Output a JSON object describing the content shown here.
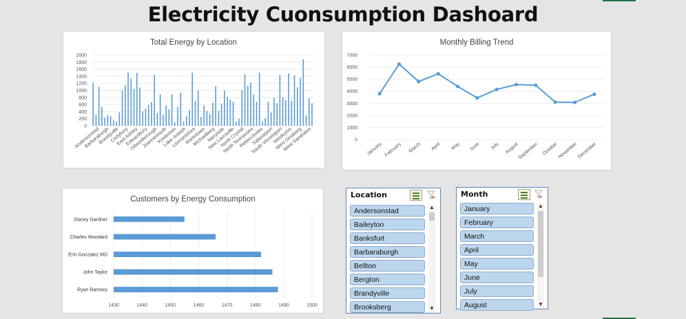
{
  "page": {
    "title": "Electricity Cuonsumption Dashoard"
  },
  "chart_data": [
    {
      "type": "bar",
      "title": "Total Energy by Location",
      "ylim": [
        0,
        2000
      ],
      "yticks": [
        0,
        200,
        400,
        600,
        800,
        1000,
        1200,
        1400,
        1600,
        1800,
        2000
      ],
      "tick_labels": [
        "Andersonstad",
        "Barbaraburgh",
        "Brandyville",
        "Codybury",
        "East Ashley",
        "Edwardbury",
        "Gibsonborough",
        "Joannemouth",
        "Kristinown",
        "Lake Joseph",
        "Leonardshire",
        "Martintown",
        "Michaelberg",
        "Nanyside",
        "New Lauraville",
        "North Crystal",
        "North Teresaview",
        "Rebeccaview",
        "Salazarport",
        "South Vincentport",
        "Wesleyton",
        "West Ginaberg",
        "West Sandraton"
      ],
      "values": [
        1220,
        310,
        1100,
        540,
        230,
        300,
        270,
        160,
        120,
        380,
        1000,
        1150,
        1500,
        1340,
        1040,
        1500,
        1080,
        410,
        490,
        590,
        670,
        1440,
        360,
        890,
        320,
        570,
        470,
        890,
        100,
        540,
        940,
        120,
        270,
        440,
        1500,
        700,
        1000,
        250,
        570,
        420,
        330,
        650,
        1120,
        430,
        630,
        1000,
        820,
        750,
        680,
        120,
        200,
        1010,
        1460,
        1130,
        1220,
        880,
        680,
        1500,
        130,
        220,
        680,
        380,
        790,
        640,
        1440,
        810,
        730,
        1480,
        710,
        1420,
        1090,
        1360,
        1880,
        300,
        780,
        640
      ]
    },
    {
      "type": "line",
      "title": "Monthly Billing Trend",
      "ylim": [
        0,
        7000
      ],
      "yticks": [
        0,
        1000,
        2000,
        3000,
        4000,
        5000,
        6000,
        7000
      ],
      "categories": [
        "January",
        "February",
        "March",
        "April",
        "May",
        "June",
        "July",
        "August",
        "September",
        "October",
        "November",
        "December"
      ],
      "values": [
        3800,
        6250,
        4800,
        5450,
        4400,
        3450,
        4150,
        4550,
        4500,
        3100,
        3080,
        3750
      ]
    },
    {
      "type": "bar",
      "orientation": "horizontal",
      "title": "Customers by Energy Consumption",
      "xlim": [
        1430,
        1500
      ],
      "xticks": [
        1430,
        1440,
        1450,
        1460,
        1470,
        1480,
        1490,
        1500
      ],
      "categories": [
        "Stacey Gardner",
        "Charles Woodard",
        "Erin Gonzalez MD",
        "John Taylor",
        "Ryan Ramsey"
      ],
      "values": [
        1455,
        1466,
        1482,
        1486,
        1488
      ]
    }
  ],
  "slicers": {
    "location": {
      "title": "Location",
      "items": [
        "Andersonstad",
        "Baileyton",
        "Banksfurt",
        "Barbaraburgh",
        "Bellton",
        "Bergton",
        "Brandyville",
        "Brooksberg"
      ]
    },
    "month": {
      "title": "Month",
      "items": [
        "January",
        "February",
        "March",
        "April",
        "May",
        "June",
        "July",
        "August"
      ]
    }
  },
  "colors": {
    "series": "#5b9bd5",
    "slicer_item": "#bcd6ee",
    "slicer_border": "#5b86b5"
  },
  "icons": {
    "multi_select": "multi-select-icon",
    "clear_filter": "clear-filter-icon"
  }
}
